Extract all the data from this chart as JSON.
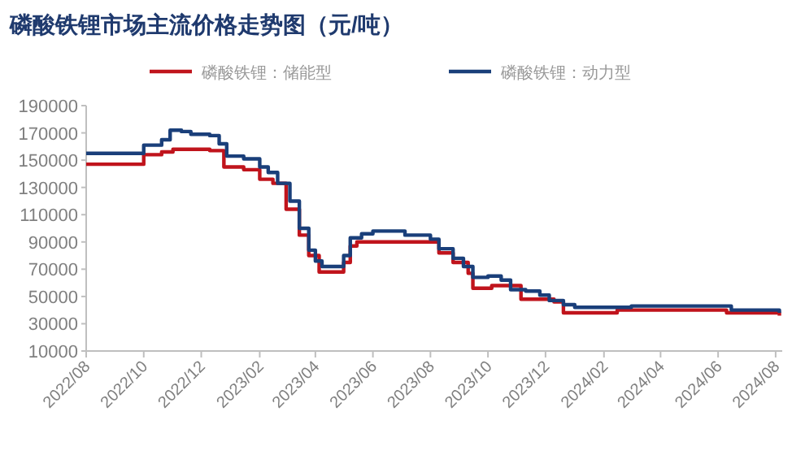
{
  "chart_data": {
    "type": "step",
    "title": "磷酸铁锂市场主流价格走势图（元/吨）",
    "legend": "top",
    "grid": false,
    "line_style": "solid",
    "xlim": [
      "2022-08-01",
      "2024-08-08"
    ],
    "xticks": [
      {
        "value": "2022-08",
        "label": "2022/08"
      },
      {
        "value": "2022-10",
        "label": "2022/10"
      },
      {
        "value": "2022-12",
        "label": "2022/12"
      },
      {
        "value": "2023-02",
        "label": "2023/02"
      },
      {
        "value": "2023-04",
        "label": "2023/04"
      },
      {
        "value": "2023-06",
        "label": "2023/06"
      },
      {
        "value": "2023-08",
        "label": "2023/08"
      },
      {
        "value": "2023-10",
        "label": "2023/10"
      },
      {
        "value": "2023-12",
        "label": "2023/12"
      },
      {
        "value": "2024-02",
        "label": "2024/02"
      },
      {
        "value": "2024-04",
        "label": "2024/04"
      },
      {
        "value": "2024-06",
        "label": "2024/06"
      },
      {
        "value": "2024-08",
        "label": "2024/08"
      }
    ],
    "ylim": [
      10000,
      190000
    ],
    "yticks": [
      10000,
      30000,
      50000,
      70000,
      90000,
      110000,
      130000,
      150000,
      170000,
      190000
    ],
    "series": [
      {
        "name": "磷酸铁锂：储能型",
        "color": "#c0141c",
        "x": [
          "2022-08-01",
          "2022-10-01",
          "2022-10-20",
          "2022-11-01",
          "2022-12-10",
          "2022-12-25",
          "2023-01-15",
          "2023-02-01",
          "2023-02-15",
          "2023-03-01",
          "2023-03-15",
          "2023-03-25",
          "2023-04-05",
          "2023-05-01",
          "2023-05-08",
          "2023-05-15",
          "2023-07-25",
          "2023-08-10",
          "2023-08-25",
          "2023-09-10",
          "2023-09-15",
          "2023-10-05",
          "2023-11-05",
          "2023-12-10",
          "2023-12-20",
          "2024-02-15",
          "2024-06-10",
          "2024-08-05"
        ],
        "values": [
          147000,
          154000,
          156000,
          158000,
          157000,
          145000,
          143000,
          136000,
          133000,
          114000,
          95000,
          80000,
          68000,
          75000,
          87000,
          90000,
          90000,
          82000,
          75000,
          67000,
          56000,
          58000,
          48000,
          46000,
          38000,
          40000,
          38000,
          36000
        ]
      },
      {
        "name": "磷酸铁锂：动力型",
        "color": "#1a3f7a",
        "x": [
          "2022-08-01",
          "2022-10-01",
          "2022-10-20",
          "2022-10-29",
          "2022-11-10",
          "2022-11-20",
          "2022-12-10",
          "2022-12-20",
          "2022-12-28",
          "2023-01-15",
          "2023-02-01",
          "2023-02-10",
          "2023-02-20",
          "2023-03-05",
          "2023-03-15",
          "2023-03-25",
          "2023-04-01",
          "2023-04-08",
          "2023-05-01",
          "2023-05-08",
          "2023-05-20",
          "2023-06-01",
          "2023-07-05",
          "2023-08-01",
          "2023-08-10",
          "2023-08-25",
          "2023-09-05",
          "2023-09-15",
          "2023-10-01",
          "2023-10-15",
          "2023-10-25",
          "2023-11-10",
          "2023-11-25",
          "2023-12-05",
          "2023-12-20",
          "2024-01-01",
          "2024-03-01",
          "2024-06-15",
          "2024-08-05"
        ],
        "values": [
          155000,
          161000,
          165000,
          172000,
          171000,
          169000,
          168000,
          162000,
          153000,
          151000,
          145000,
          141000,
          133000,
          120000,
          100000,
          84000,
          76000,
          72000,
          80000,
          93000,
          96000,
          98000,
          95000,
          92000,
          85000,
          78000,
          72000,
          64000,
          65000,
          62000,
          55000,
          54000,
          51000,
          47000,
          44000,
          42000,
          43000,
          40000,
          38000
        ]
      }
    ]
  }
}
